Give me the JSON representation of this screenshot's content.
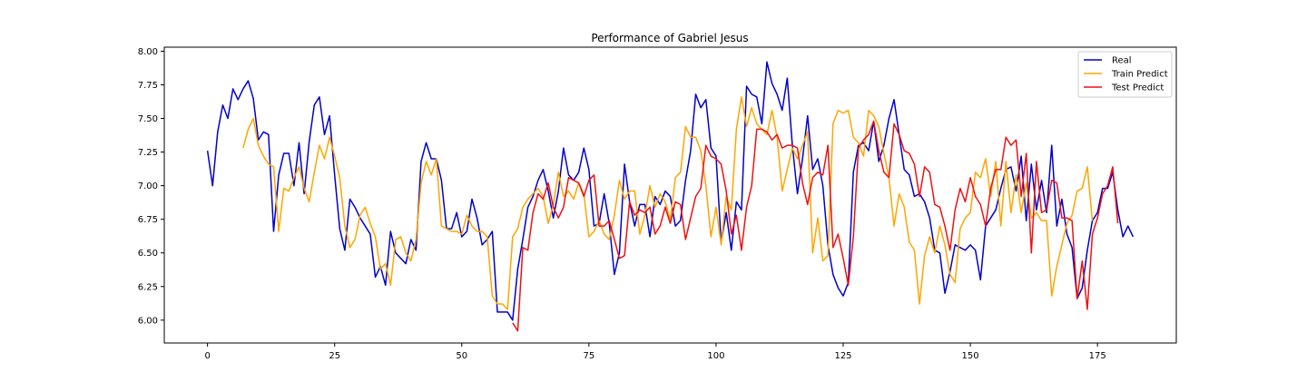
{
  "chart_data": {
    "type": "line",
    "title": "Performance of Gabriel Jesus",
    "xlabel": "",
    "ylabel": "",
    "xlim": [
      -8.5,
      190.5
    ],
    "ylim": [
      5.83,
      8.03
    ],
    "xticks": [
      0,
      25,
      50,
      75,
      100,
      125,
      150,
      175
    ],
    "yticks": [
      6.0,
      6.25,
      6.5,
      6.75,
      7.0,
      7.25,
      7.5,
      7.75,
      8.0
    ],
    "ytick_labels": [
      "6.00",
      "6.25",
      "6.50",
      "6.75",
      "7.00",
      "7.25",
      "7.50",
      "7.75",
      "8.00"
    ],
    "grid": false,
    "legend_position": "top-right",
    "series": [
      {
        "name": "Real",
        "color": "#0000cc",
        "x_start": 0,
        "values": [
          7.26,
          7.0,
          7.4,
          7.6,
          7.5,
          7.72,
          7.64,
          7.72,
          7.78,
          7.65,
          7.34,
          7.4,
          7.38,
          6.66,
          7.08,
          7.24,
          7.24,
          7.0,
          7.32,
          6.94,
          7.33,
          7.6,
          7.66,
          7.38,
          7.52,
          7.08,
          6.68,
          6.52,
          6.9,
          6.84,
          6.76,
          6.7,
          6.64,
          6.32,
          6.4,
          6.26,
          6.66,
          6.5,
          6.46,
          6.42,
          6.6,
          6.52,
          7.18,
          7.32,
          7.2,
          7.2,
          7.04,
          6.68,
          6.68,
          6.8,
          6.62,
          6.66,
          6.9,
          6.76,
          6.56,
          6.6,
          6.66,
          6.06,
          6.06,
          6.06,
          6.0,
          6.38,
          6.6,
          6.84,
          6.92,
          7.04,
          7.12,
          6.96,
          6.76,
          6.96,
          7.28,
          7.08,
          7.04,
          7.1,
          7.28,
          7.12,
          6.7,
          6.72,
          6.94,
          6.72,
          6.34,
          6.5,
          7.16,
          6.88,
          6.7,
          6.86,
          6.86,
          6.62,
          6.92,
          6.86,
          6.96,
          6.92,
          6.7,
          6.74,
          7.04,
          7.26,
          7.68,
          7.58,
          7.64,
          7.28,
          7.22,
          6.58,
          6.8,
          6.52,
          6.88,
          6.82,
          7.74,
          7.68,
          7.66,
          7.46,
          7.92,
          7.76,
          7.68,
          7.56,
          7.8,
          7.3,
          6.94,
          7.2,
          7.52,
          7.12,
          7.2,
          7.0,
          6.56,
          6.34,
          6.24,
          6.18,
          6.28,
          7.1,
          7.3,
          7.32,
          7.26,
          7.48,
          7.18,
          7.3,
          7.5,
          7.64,
          7.38,
          7.12,
          7.08,
          6.92,
          6.94,
          6.88,
          6.76,
          6.52,
          6.5,
          6.2,
          6.36,
          6.56,
          6.54,
          6.52,
          6.56,
          6.52,
          6.3,
          6.7,
          6.76,
          6.82,
          6.98,
          7.12,
          7.14,
          6.96,
          7.22,
          6.74,
          7.16,
          6.82,
          7.04,
          6.8,
          7.3,
          6.7,
          6.9,
          6.64,
          6.54,
          6.16,
          6.24,
          6.52,
          6.74,
          6.8,
          6.98,
          6.98,
          7.1,
          6.82,
          6.62,
          6.7,
          6.62
        ]
      },
      {
        "name": "Train Predict",
        "color": "#ffa500",
        "x_start": 7,
        "values": [
          7.28,
          7.42,
          7.5,
          7.3,
          7.22,
          7.16,
          7.14,
          6.66,
          6.98,
          6.96,
          7.06,
          7.14,
          6.98,
          6.88,
          7.1,
          7.3,
          7.2,
          7.36,
          7.22,
          7.06,
          6.7,
          6.54,
          6.6,
          6.78,
          6.84,
          6.72,
          6.62,
          6.38,
          6.42,
          6.26,
          6.6,
          6.62,
          6.5,
          6.44,
          6.6,
          7.02,
          7.18,
          7.08,
          7.2,
          6.7,
          6.68,
          6.66,
          6.66,
          6.64,
          6.78,
          6.7,
          6.66,
          6.66,
          6.62,
          6.18,
          6.12,
          6.12,
          6.08,
          6.62,
          6.68,
          6.84,
          6.9,
          6.94,
          6.98,
          6.92,
          6.72,
          6.86,
          7.1,
          6.92,
          6.96,
          6.9,
          7.02,
          6.94,
          6.62,
          6.66,
          6.74,
          6.64,
          6.6,
          6.78,
          7.04,
          6.9,
          6.96,
          6.96,
          6.64,
          6.78,
          7.0,
          6.84,
          6.94,
          6.88,
          6.74,
          7.06,
          7.1,
          7.44,
          7.36,
          7.36,
          7.26,
          7.0,
          6.62,
          6.84,
          6.56,
          6.92,
          6.82,
          7.42,
          7.66,
          7.44,
          7.58,
          7.46,
          7.42,
          7.38,
          7.56,
          7.36,
          6.96,
          7.12,
          7.28,
          7.2,
          7.3,
          7.4,
          6.5,
          6.76,
          6.44,
          6.48,
          7.46,
          7.56,
          7.54,
          7.56,
          7.36,
          7.32,
          7.22,
          7.56,
          7.52,
          7.44,
          7.24,
          7.06,
          6.7,
          6.94,
          6.84,
          6.58,
          6.52,
          6.12,
          6.48,
          6.62,
          6.5,
          6.7,
          6.56,
          6.34,
          6.28,
          6.68,
          6.76,
          6.8,
          7.1,
          7.06,
          7.2,
          6.92,
          7.18,
          6.7,
          7.18,
          6.8,
          7.08,
          6.8,
          7.02,
          6.76,
          6.8,
          6.74,
          6.74,
          6.18,
          6.4,
          6.56,
          6.72,
          6.78,
          6.96,
          6.98,
          7.14,
          6.74
        ]
      },
      {
        "name": "Test Predict",
        "color": "#ee1111",
        "x_start": 60,
        "values": [
          5.98,
          5.92,
          6.54,
          6.52,
          6.8,
          6.94,
          6.9,
          7.02,
          6.84,
          6.76,
          6.84,
          7.06,
          7.04,
          7.02,
          6.92,
          7.04,
          7.08,
          6.7,
          6.7,
          6.74,
          6.6,
          6.46,
          6.48,
          6.88,
          6.78,
          6.82,
          6.8,
          6.84,
          6.64,
          6.7,
          6.84,
          6.72,
          6.88,
          6.86,
          6.6,
          6.76,
          6.92,
          6.98,
          7.3,
          7.22,
          7.2,
          7.16,
          6.96,
          6.64,
          6.78,
          6.52,
          6.84,
          7.0,
          7.42,
          7.42,
          7.4,
          7.34,
          7.38,
          7.28,
          7.3,
          7.3,
          7.28,
          7.02,
          6.86,
          7.06,
          7.1,
          7.08,
          7.3,
          6.54,
          6.64,
          6.46,
          6.26,
          6.62,
          7.28,
          7.34,
          7.38,
          7.48,
          7.26,
          7.1,
          7.06,
          7.46,
          7.38,
          7.26,
          7.24,
          7.16,
          6.92,
          7.14,
          7.1,
          6.86,
          6.84,
          6.7,
          6.52,
          6.82,
          6.98,
          6.88,
          7.06,
          6.92,
          6.86,
          6.7,
          6.98,
          7.12,
          7.12,
          7.36,
          7.3,
          7.34,
          6.92,
          7.24,
          6.5,
          7.18,
          6.8,
          6.82,
          7.04,
          7.02,
          6.76,
          6.76,
          6.74,
          6.16,
          6.44,
          6.08,
          6.64,
          6.76,
          6.94,
          7.0,
          7.14,
          6.72
        ]
      }
    ]
  }
}
